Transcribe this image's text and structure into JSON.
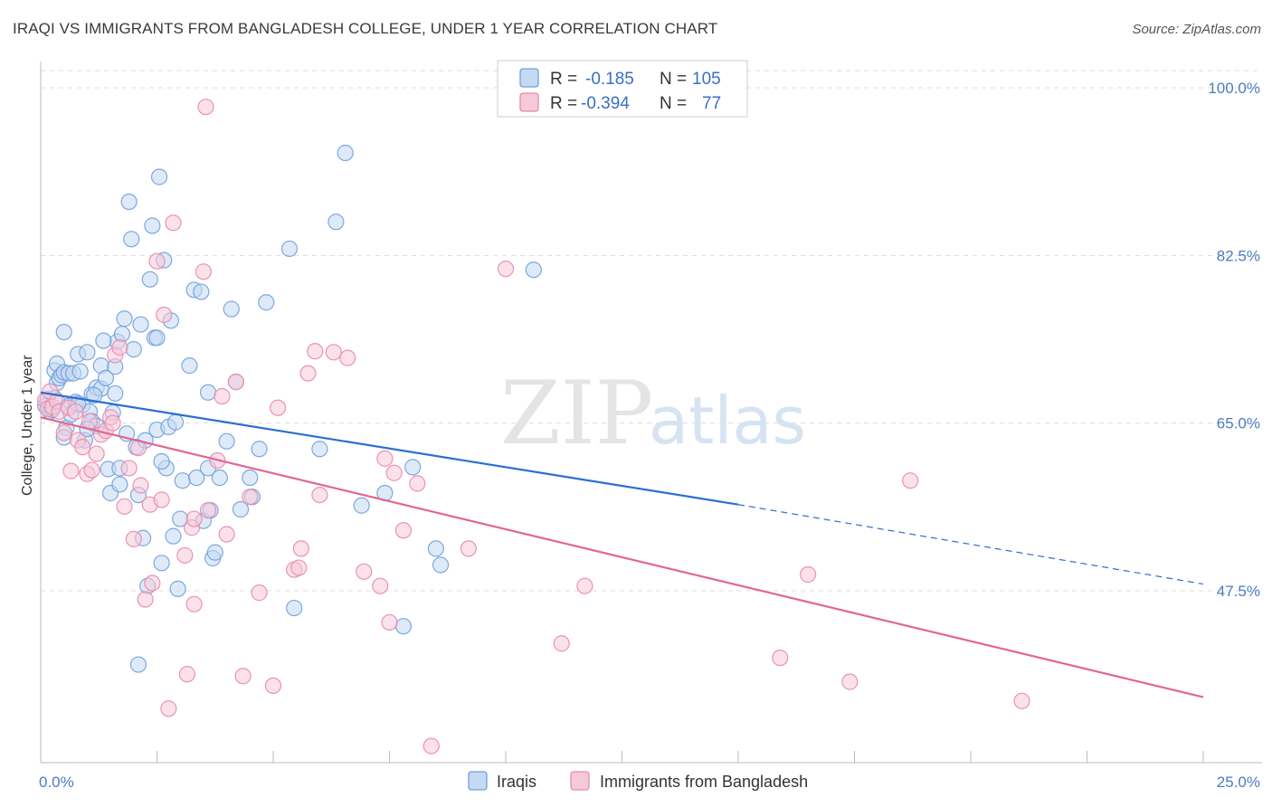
{
  "title": "IRAQI VS IMMIGRANTS FROM BANGLADESH COLLEGE, UNDER 1 YEAR CORRELATION CHART",
  "source": "Source: ZipAtlas.com",
  "watermark": {
    "zip": "ZIP",
    "atlas": "atlas"
  },
  "colors": {
    "iraqis": "#6fa0dc",
    "iraqis_fill": "#c5d9f2",
    "bangladesh": "#e88aab",
    "bangladesh_fill": "#f6c9d8",
    "iraqis_line": "#2a6fd1",
    "bangladesh_line": "#e06792",
    "grid": "#dddddd",
    "tick_text": "#4a7cc0"
  },
  "legend": {
    "iraqis": {
      "r_label": "R =",
      "r_value": "-0.185",
      "n_label": "N =",
      "n_value": "105"
    },
    "bangladesh": {
      "r_label": "R =",
      "r_value": "-0.394",
      "n_label": "N =",
      "n_value": "77"
    }
  },
  "bottom_legend": {
    "iraqis": "Iraqis",
    "bangladesh": "Immigrants from Bangladesh"
  },
  "chart_data": {
    "type": "scatter",
    "title": "IRAQI VS IMMIGRANTS FROM BANGLADESH COLLEGE, UNDER 1 YEAR CORRELATION CHART",
    "xlabel": "",
    "ylabel": "College, Under 1 year",
    "xlim": [
      0,
      25
    ],
    "ylim": [
      29,
      103
    ],
    "x_tick_labels": [
      "0.0%",
      "25.0%"
    ],
    "x_ticks": [
      0,
      2.5,
      5,
      7.5,
      10,
      12.5,
      15,
      17.5,
      20,
      22.5,
      25
    ],
    "y_ticks": [
      47.5,
      65.0,
      82.5,
      100.0
    ],
    "y_tick_labels": [
      "47.5%",
      "65.0%",
      "82.5%",
      "100.0%"
    ],
    "grid": true,
    "series": [
      {
        "name": "Iraqis",
        "trend": {
          "x": [
            0,
            15
          ],
          "y": [
            68.2,
            56.5
          ],
          "dashed_x": [
            15,
            25
          ],
          "dashed_y": [
            56.5,
            48.2
          ]
        },
        "points": [
          [
            0.1,
            66.8
          ],
          [
            0.15,
            67.5
          ],
          [
            0.2,
            66.2
          ],
          [
            0.25,
            66.4
          ],
          [
            0.3,
            70.5
          ],
          [
            0.3,
            67.6
          ],
          [
            0.35,
            69.2
          ],
          [
            0.35,
            71.2
          ],
          [
            0.4,
            69.7
          ],
          [
            0.45,
            70.0
          ],
          [
            0.5,
            74.5
          ],
          [
            0.5,
            70.3
          ],
          [
            0.55,
            64.5
          ],
          [
            0.6,
            70.2
          ],
          [
            0.6,
            66.8
          ],
          [
            0.65,
            65.9
          ],
          [
            0.7,
            70.2
          ],
          [
            0.75,
            67.2
          ],
          [
            0.8,
            72.2
          ],
          [
            0.85,
            70.4
          ],
          [
            0.9,
            66.9
          ],
          [
            0.95,
            63.2
          ],
          [
            1.0,
            72.4
          ],
          [
            1.05,
            66.2
          ],
          [
            1.1,
            68.0
          ],
          [
            1.1,
            65.2
          ],
          [
            1.2,
            68.7
          ],
          [
            1.2,
            64.7
          ],
          [
            1.3,
            71.0
          ],
          [
            1.3,
            68.6
          ],
          [
            1.4,
            69.7
          ],
          [
            1.45,
            60.2
          ],
          [
            1.5,
            57.7
          ],
          [
            1.55,
            66.1
          ],
          [
            1.6,
            70.9
          ],
          [
            1.6,
            68.1
          ],
          [
            1.65,
            73.5
          ],
          [
            1.7,
            60.3
          ],
          [
            1.75,
            74.3
          ],
          [
            1.8,
            75.9
          ],
          [
            1.85,
            63.9
          ],
          [
            1.9,
            88.1
          ],
          [
            1.95,
            84.2
          ],
          [
            2.0,
            72.7
          ],
          [
            2.05,
            62.5
          ],
          [
            2.1,
            57.5
          ],
          [
            2.15,
            75.3
          ],
          [
            2.2,
            53.0
          ],
          [
            2.25,
            63.2
          ],
          [
            2.3,
            48.0
          ],
          [
            2.35,
            80.0
          ],
          [
            2.4,
            85.6
          ],
          [
            2.45,
            73.9
          ],
          [
            2.5,
            73.9
          ],
          [
            2.5,
            64.3
          ],
          [
            2.55,
            90.7
          ],
          [
            2.6,
            50.4
          ],
          [
            2.65,
            82.0
          ],
          [
            2.7,
            60.3
          ],
          [
            2.75,
            64.6
          ],
          [
            2.8,
            75.7
          ],
          [
            2.85,
            53.2
          ],
          [
            2.9,
            65.1
          ],
          [
            3.05,
            59.0
          ],
          [
            3.2,
            71.0
          ],
          [
            3.3,
            78.9
          ],
          [
            3.35,
            59.3
          ],
          [
            3.45,
            78.7
          ],
          [
            3.5,
            54.8
          ],
          [
            3.6,
            68.2
          ],
          [
            3.6,
            60.3
          ],
          [
            3.65,
            55.9
          ],
          [
            3.7,
            50.9
          ],
          [
            3.75,
            51.5
          ],
          [
            3.85,
            59.3
          ],
          [
            4.0,
            63.1
          ],
          [
            4.1,
            76.9
          ],
          [
            4.2,
            69.3
          ],
          [
            4.3,
            56.0
          ],
          [
            4.5,
            59.3
          ],
          [
            4.55,
            57.3
          ],
          [
            4.7,
            62.3
          ],
          [
            4.85,
            77.6
          ],
          [
            5.35,
            83.2
          ],
          [
            5.45,
            45.7
          ],
          [
            6.0,
            62.3
          ],
          [
            6.35,
            86.0
          ],
          [
            6.55,
            93.2
          ],
          [
            6.9,
            56.4
          ],
          [
            7.4,
            57.7
          ],
          [
            7.8,
            43.8
          ],
          [
            8.0,
            60.4
          ],
          [
            8.5,
            51.9
          ],
          [
            8.6,
            50.2
          ],
          [
            10.6,
            81.0
          ],
          [
            2.1,
            39.8
          ],
          [
            0.5,
            63.5
          ],
          [
            1.0,
            64.4
          ],
          [
            1.15,
            67.9
          ],
          [
            1.35,
            73.6
          ],
          [
            2.6,
            61.0
          ],
          [
            3.0,
            55.0
          ],
          [
            0.8,
            67.0
          ],
          [
            1.7,
            58.6
          ],
          [
            2.95,
            47.7
          ]
        ]
      },
      {
        "name": "Immigrants from Bangladesh",
        "trend": {
          "x": [
            0,
            25
          ],
          "y": [
            65.6,
            36.4
          ]
        },
        "points": [
          [
            0.1,
            67.4
          ],
          [
            0.15,
            66.5
          ],
          [
            0.2,
            68.3
          ],
          [
            0.25,
            66.7
          ],
          [
            0.35,
            67.3
          ],
          [
            0.4,
            66.2
          ],
          [
            0.5,
            64.0
          ],
          [
            0.6,
            66.6
          ],
          [
            0.65,
            60.0
          ],
          [
            0.75,
            66.2
          ],
          [
            0.8,
            63.2
          ],
          [
            0.9,
            62.5
          ],
          [
            1.0,
            59.7
          ],
          [
            1.05,
            65.2
          ],
          [
            1.1,
            60.1
          ],
          [
            1.2,
            61.8
          ],
          [
            1.3,
            63.8
          ],
          [
            1.4,
            64.2
          ],
          [
            1.5,
            65.6
          ],
          [
            1.55,
            65.0
          ],
          [
            1.6,
            72.1
          ],
          [
            1.7,
            72.9
          ],
          [
            1.8,
            56.3
          ],
          [
            1.9,
            60.3
          ],
          [
            2.0,
            52.9
          ],
          [
            2.1,
            62.4
          ],
          [
            2.15,
            58.5
          ],
          [
            2.25,
            46.6
          ],
          [
            2.35,
            56.5
          ],
          [
            2.4,
            48.3
          ],
          [
            2.5,
            81.9
          ],
          [
            2.6,
            57.0
          ],
          [
            2.65,
            76.3
          ],
          [
            2.75,
            35.2
          ],
          [
            2.85,
            85.9
          ],
          [
            3.1,
            51.2
          ],
          [
            3.15,
            38.8
          ],
          [
            3.25,
            54.1
          ],
          [
            3.3,
            46.1
          ],
          [
            3.5,
            80.8
          ],
          [
            3.55,
            98.0
          ],
          [
            3.6,
            55.9
          ],
          [
            3.8,
            61.1
          ],
          [
            3.9,
            67.8
          ],
          [
            4.0,
            53.4
          ],
          [
            4.2,
            69.3
          ],
          [
            4.35,
            38.6
          ],
          [
            4.5,
            57.3
          ],
          [
            4.7,
            47.3
          ],
          [
            5.0,
            37.6
          ],
          [
            5.1,
            66.6
          ],
          [
            5.45,
            49.7
          ],
          [
            5.55,
            49.9
          ],
          [
            5.6,
            51.9
          ],
          [
            5.75,
            70.2
          ],
          [
            5.9,
            72.5
          ],
          [
            6.0,
            57.5
          ],
          [
            6.3,
            72.4
          ],
          [
            6.6,
            71.8
          ],
          [
            6.95,
            49.5
          ],
          [
            7.3,
            48.0
          ],
          [
            7.4,
            61.3
          ],
          [
            7.5,
            44.2
          ],
          [
            7.6,
            59.8
          ],
          [
            7.8,
            53.8
          ],
          [
            8.1,
            58.7
          ],
          [
            8.4,
            31.3
          ],
          [
            9.2,
            51.9
          ],
          [
            10.0,
            81.1
          ],
          [
            11.2,
            42.0
          ],
          [
            11.7,
            48.0
          ],
          [
            15.9,
            40.5
          ],
          [
            16.5,
            49.2
          ],
          [
            17.4,
            38.0
          ],
          [
            18.7,
            59.0
          ],
          [
            21.1,
            36.0
          ],
          [
            3.3,
            55.0
          ]
        ]
      }
    ]
  }
}
